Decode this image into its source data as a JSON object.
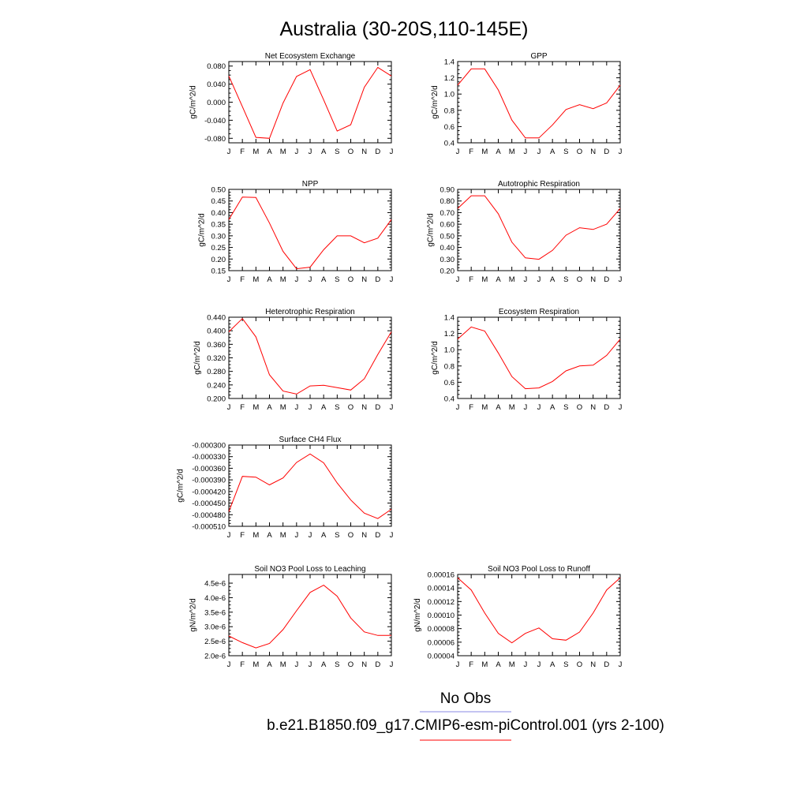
{
  "title": "Australia (30-20S,110-145E)",
  "legend": {
    "entries": [
      {
        "label": "No Obs",
        "color": "#8a8ae6"
      },
      {
        "label": "b.e21.B1850.f09_g17.CMIP6-esm-piControl.001 (yrs 2-100)",
        "color": "#ff0000"
      }
    ]
  },
  "colors": {
    "series": "#ff0000",
    "axis": "#000000"
  },
  "chart_data": [
    {
      "type": "line",
      "title": "Net Ecosystem Exchange",
      "xlabel": "",
      "ylabel": "gC/m^2/d",
      "categories": [
        "J",
        "F",
        "M",
        "A",
        "M",
        "J",
        "J",
        "A",
        "S",
        "O",
        "N",
        "D",
        "J"
      ],
      "ylim": [
        -0.09,
        0.09
      ],
      "yticks": [
        -0.08,
        -0.04,
        0.0,
        0.04,
        0.08
      ],
      "ytick_labels": [
        "-0.080",
        "-0.040",
        "0.000",
        "0.040",
        "0.080"
      ],
      "series": [
        {
          "values": [
            0.058,
            -0.01,
            -0.078,
            -0.08,
            -0.002,
            0.057,
            0.072,
            0.005,
            -0.064,
            -0.05,
            0.033,
            0.077,
            0.058
          ]
        }
      ]
    },
    {
      "type": "line",
      "title": "GPP",
      "xlabel": "",
      "ylabel": "gC/m^2/d",
      "categories": [
        "J",
        "F",
        "M",
        "A",
        "M",
        "J",
        "J",
        "A",
        "S",
        "O",
        "N",
        "D",
        "J"
      ],
      "ylim": [
        0.4,
        1.4
      ],
      "yticks": [
        0.4,
        0.6,
        0.8,
        1.0,
        1.2,
        1.4
      ],
      "ytick_labels": [
        "0.4",
        "0.6",
        "0.8",
        "1.0",
        "1.2",
        "1.4"
      ],
      "series": [
        {
          "values": [
            1.11,
            1.31,
            1.31,
            1.05,
            0.68,
            0.46,
            0.46,
            0.62,
            0.81,
            0.87,
            0.82,
            0.89,
            1.11
          ]
        }
      ]
    },
    {
      "type": "line",
      "title": "NPP",
      "xlabel": "",
      "ylabel": "gC/m^2/d",
      "categories": [
        "J",
        "F",
        "M",
        "A",
        "M",
        "J",
        "J",
        "A",
        "S",
        "O",
        "N",
        "D",
        "J"
      ],
      "ylim": [
        0.15,
        0.5
      ],
      "yticks": [
        0.15,
        0.2,
        0.25,
        0.3,
        0.35,
        0.4,
        0.45,
        0.5
      ],
      "ytick_labels": [
        "0.15",
        "0.20",
        "0.25",
        "0.30",
        "0.35",
        "0.40",
        "0.45",
        "0.50"
      ],
      "series": [
        {
          "values": [
            0.37,
            0.467,
            0.465,
            0.355,
            0.233,
            0.158,
            0.165,
            0.24,
            0.3,
            0.3,
            0.27,
            0.29,
            0.37
          ]
        }
      ]
    },
    {
      "type": "line",
      "title": "Autotrophic Respiration",
      "xlabel": "",
      "ylabel": "gC/m^2/d",
      "categories": [
        "J",
        "F",
        "M",
        "A",
        "M",
        "J",
        "J",
        "A",
        "S",
        "O",
        "N",
        "D",
        "J"
      ],
      "ylim": [
        0.2,
        0.9
      ],
      "yticks": [
        0.2,
        0.3,
        0.4,
        0.5,
        0.6,
        0.7,
        0.8,
        0.9
      ],
      "ytick_labels": [
        "0.20",
        "0.30",
        "0.40",
        "0.50",
        "0.60",
        "0.70",
        "0.80",
        "0.90"
      ],
      "series": [
        {
          "values": [
            0.735,
            0.845,
            0.845,
            0.69,
            0.445,
            0.31,
            0.298,
            0.375,
            0.505,
            0.57,
            0.555,
            0.6,
            0.735
          ]
        }
      ]
    },
    {
      "type": "line",
      "title": "Heterotrophic Respiration",
      "xlabel": "",
      "ylabel": "gC/m^2/d",
      "categories": [
        "J",
        "F",
        "M",
        "A",
        "M",
        "J",
        "J",
        "A",
        "S",
        "O",
        "N",
        "D",
        "J"
      ],
      "ylim": [
        0.2,
        0.44
      ],
      "yticks": [
        0.2,
        0.24,
        0.28,
        0.32,
        0.36,
        0.4,
        0.44
      ],
      "ytick_labels": [
        "0.200",
        "0.240",
        "0.280",
        "0.320",
        "0.360",
        "0.400",
        "0.440"
      ],
      "series": [
        {
          "values": [
            0.397,
            0.436,
            0.382,
            0.27,
            0.222,
            0.213,
            0.237,
            0.239,
            0.232,
            0.225,
            0.258,
            0.33,
            0.397
          ]
        }
      ]
    },
    {
      "type": "line",
      "title": "Ecosystem Respiration",
      "xlabel": "",
      "ylabel": "gC/m^2/d",
      "categories": [
        "J",
        "F",
        "M",
        "A",
        "M",
        "J",
        "J",
        "A",
        "S",
        "O",
        "N",
        "D",
        "J"
      ],
      "ylim": [
        0.4,
        1.4
      ],
      "yticks": [
        0.4,
        0.6,
        0.8,
        1.0,
        1.2,
        1.4
      ],
      "ytick_labels": [
        "0.4",
        "0.6",
        "0.8",
        "1.0",
        "1.2",
        "1.4"
      ],
      "series": [
        {
          "values": [
            1.13,
            1.28,
            1.23,
            0.96,
            0.67,
            0.52,
            0.53,
            0.61,
            0.74,
            0.8,
            0.81,
            0.93,
            1.13
          ]
        }
      ]
    },
    {
      "type": "line",
      "title": "Surface CH4 Flux",
      "xlabel": "",
      "ylabel": "gC/m^2/d",
      "categories": [
        "J",
        "F",
        "M",
        "A",
        "M",
        "J",
        "J",
        "A",
        "S",
        "O",
        "N",
        "D",
        "J"
      ],
      "ylim": [
        -0.00051,
        -0.0003
      ],
      "yticks": [
        -0.00051,
        -0.00048,
        -0.00045,
        -0.00042,
        -0.00039,
        -0.00036,
        -0.00033,
        -0.0003
      ],
      "ytick_labels": [
        "-0.000510",
        "-0.000480",
        "-0.000450",
        "-0.000420",
        "-0.000390",
        "-0.000360",
        "-0.000330",
        "-0.000300"
      ],
      "series": [
        {
          "values": [
            -0.000472,
            -0.000381,
            -0.000383,
            -0.000403,
            -0.000385,
            -0.000345,
            -0.000323,
            -0.000346,
            -0.000398,
            -0.000442,
            -0.000476,
            -0.00049,
            -0.000466
          ]
        }
      ]
    },
    {
      "type": "line",
      "title": "Soil NO3 Pool Loss to Leaching",
      "xlabel": "",
      "ylabel": "gN/m^2/d",
      "categories": [
        "J",
        "F",
        "M",
        "A",
        "M",
        "J",
        "J",
        "A",
        "S",
        "O",
        "N",
        "D",
        "J"
      ],
      "ylim": [
        2e-06,
        4.8e-06
      ],
      "yticks": [
        2e-06,
        2.5e-06,
        3e-06,
        3.5e-06,
        4e-06,
        4.5e-06
      ],
      "ytick_labels": [
        "2.0e-6",
        "2.5e-6",
        "3.0e-6",
        "3.5e-6",
        "4.0e-6",
        "4.5e-6"
      ],
      "series": [
        {
          "values": [
            2.68e-06,
            2.45e-06,
            2.27e-06,
            2.42e-06,
            2.9e-06,
            3.55e-06,
            4.18e-06,
            4.43e-06,
            4.05e-06,
            3.3e-06,
            2.82e-06,
            2.7e-06,
            2.7e-06
          ]
        }
      ]
    },
    {
      "type": "line",
      "title": "Soil NO3 Pool Loss to Runoff",
      "xlabel": "",
      "ylabel": "gN/m^2/d",
      "categories": [
        "J",
        "F",
        "M",
        "A",
        "M",
        "J",
        "J",
        "A",
        "S",
        "O",
        "N",
        "D",
        "J"
      ],
      "ylim": [
        4e-05,
        0.00016
      ],
      "yticks": [
        4e-05,
        6e-05,
        8e-05,
        0.0001,
        0.00012,
        0.00014,
        0.00016
      ],
      "ytick_labels": [
        "0.00004",
        "0.00006",
        "0.00008",
        "0.00010",
        "0.00012",
        "0.00014",
        "0.00016"
      ],
      "series": [
        {
          "values": [
            0.000155,
            0.000137,
            0.000103,
            7.3e-05,
            5.9e-05,
            7.3e-05,
            8.1e-05,
            6.5e-05,
            6.3e-05,
            7.5e-05,
            0.000103,
            0.000137,
            0.000155
          ]
        }
      ]
    }
  ]
}
